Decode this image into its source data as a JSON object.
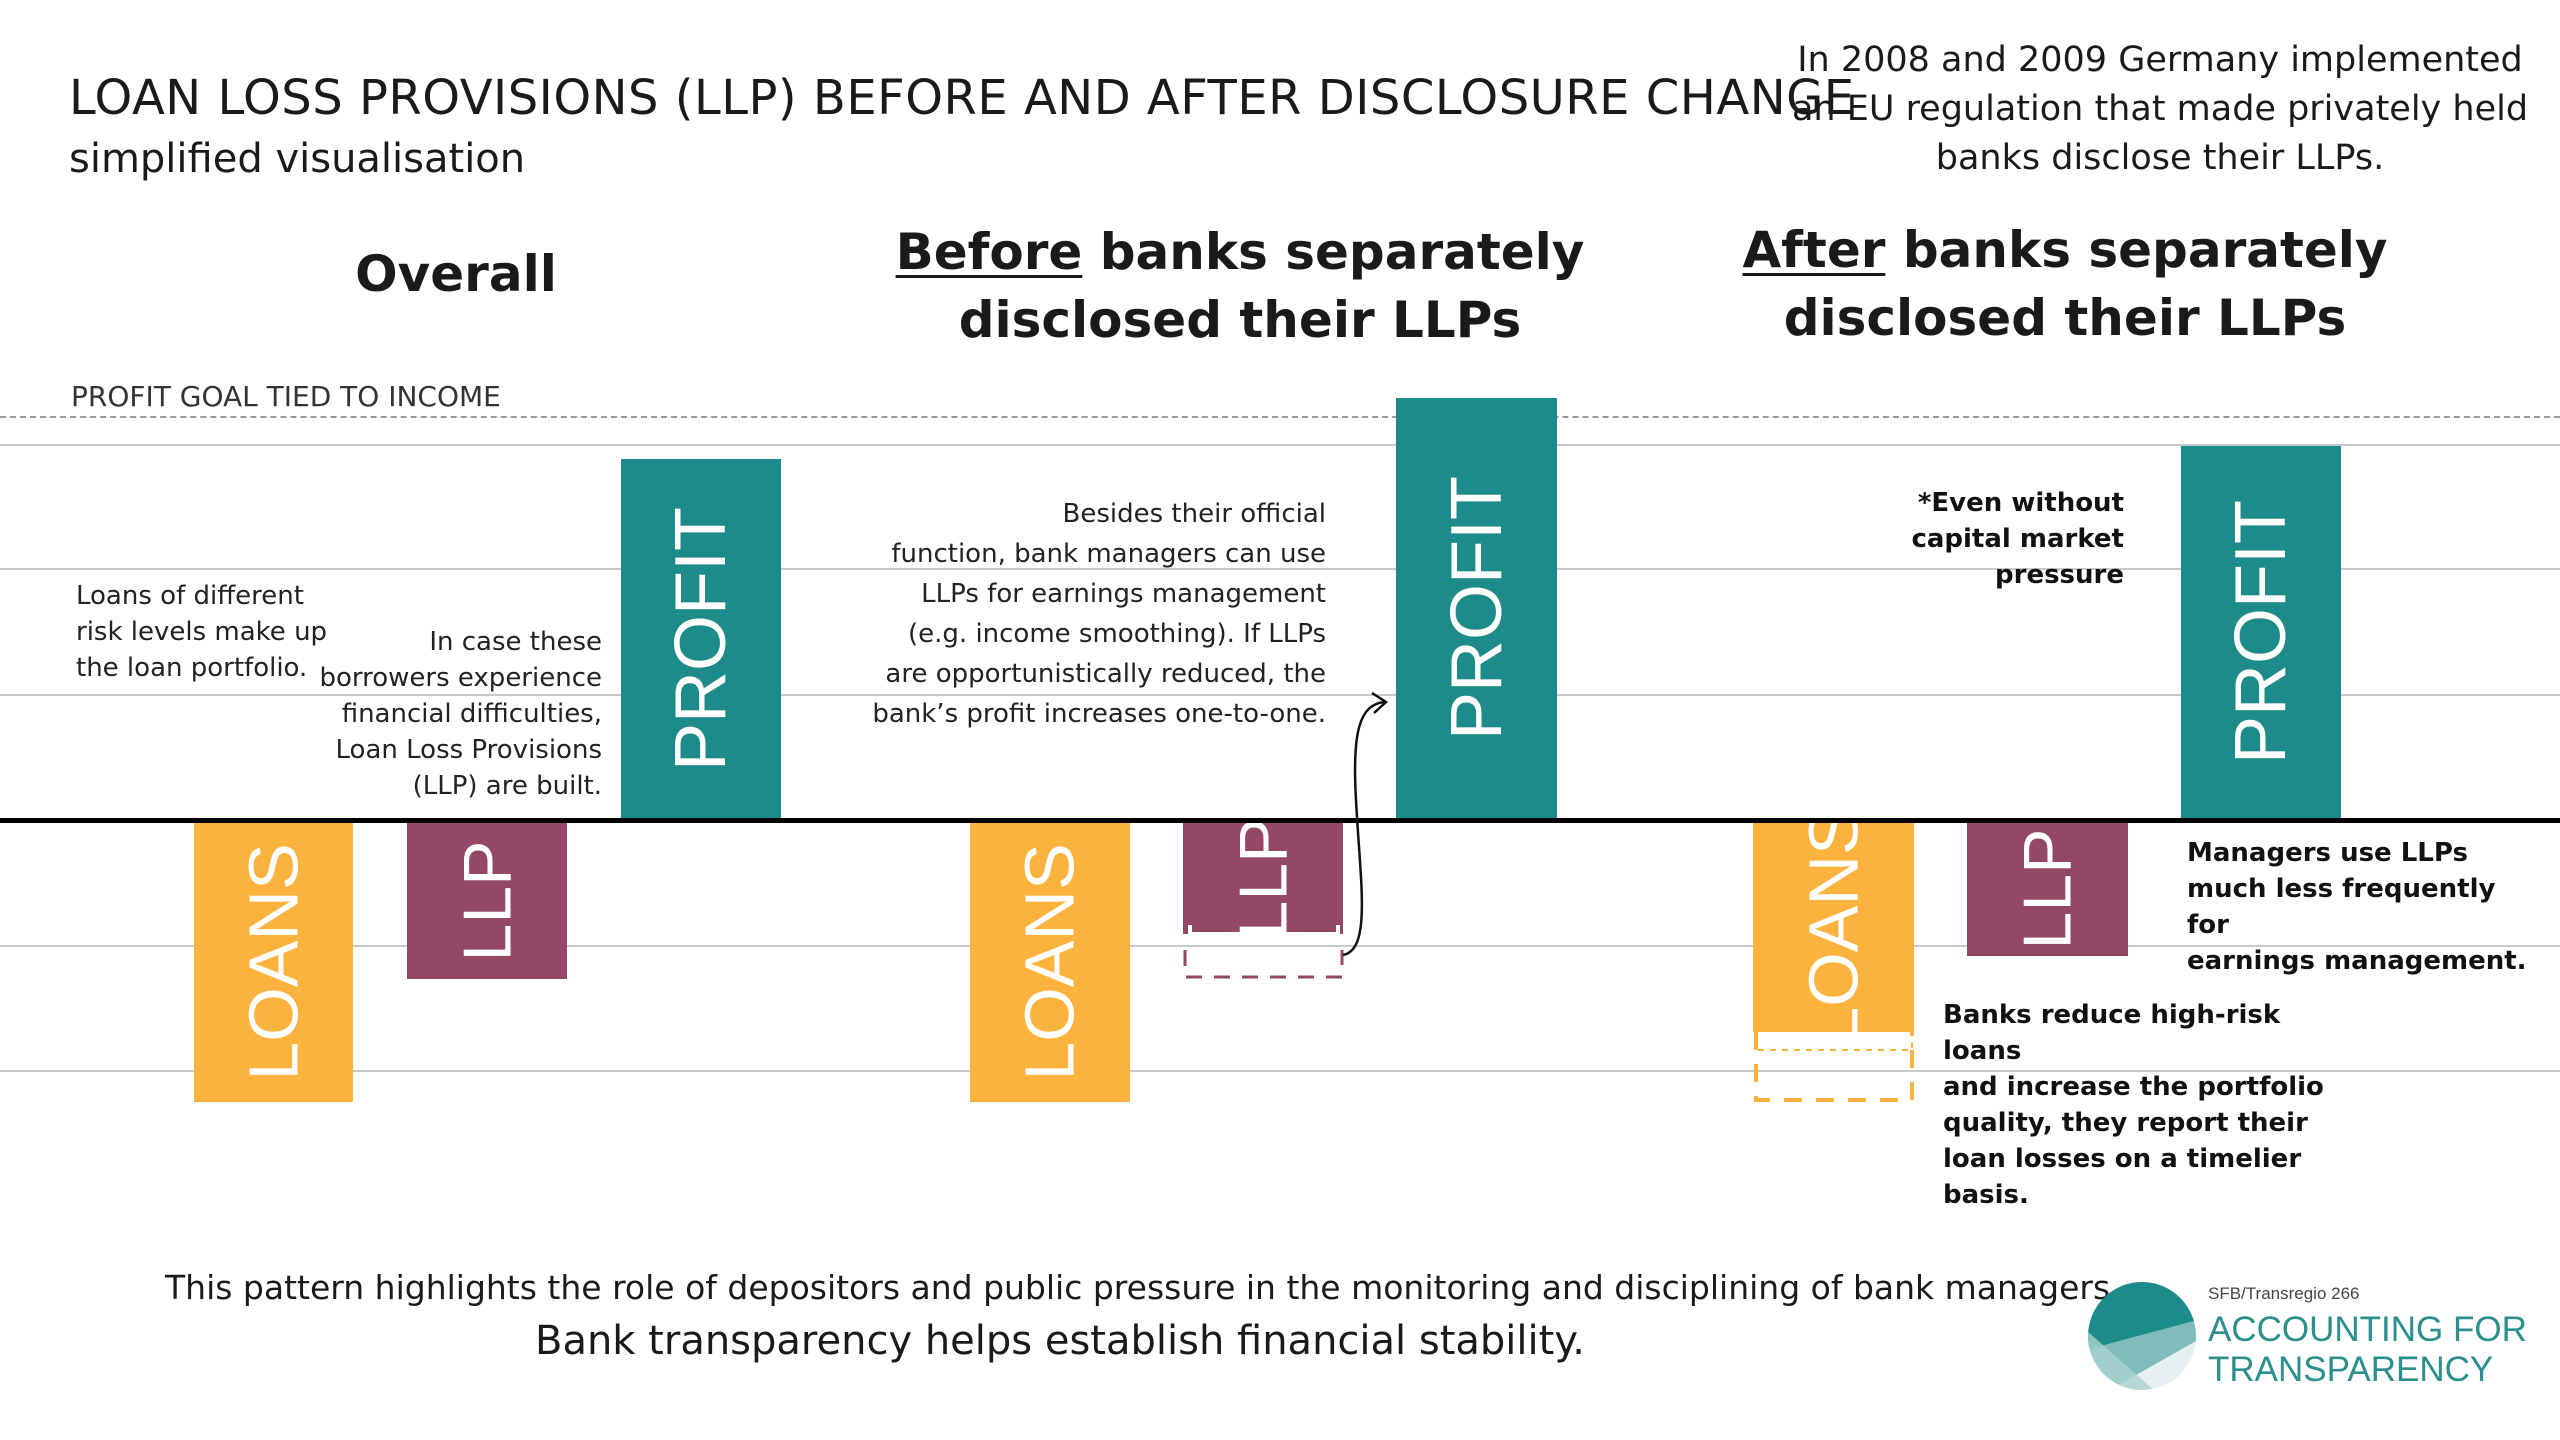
{
  "header": {
    "title": "LOAN LOSS PROVISIONS (LLP) BEFORE AND AFTER DISCLOSURE CHANGE",
    "subtitle": "simplified visualisation",
    "context": "In 2008 and 2009 Germany implemented an EU regulation that made privately held banks disclose their LLPs."
  },
  "panels": {
    "overall": {
      "title": "Overall"
    },
    "before": {
      "title_em": "Before",
      "title_rest": " banks separately",
      "title_line2": "disclosed their LLPs"
    },
    "after": {
      "title_em": "After",
      "title_rest": " banks separately",
      "title_line2": "disclosed their LLPs"
    }
  },
  "goal_label": "PROFIT GOAL TIED TO INCOME",
  "bars": {
    "loans": "LOANS",
    "llp": "LLP",
    "profit": "PROFIT"
  },
  "bar_colors": {
    "loans": "#fbb33d",
    "llp": "#944865",
    "profit": "#1d8b89"
  },
  "notes": {
    "loans_portfolio": [
      "Loans of different",
      "risk levels make up",
      "the loan portfolio."
    ],
    "llp_built": [
      "In case these",
      "borrowers experience",
      "financial difficulties,",
      "Loan Loss Provisions",
      "(LLP) are built."
    ],
    "earnings_mgmt": [
      "Besides their official",
      "function, bank managers can use",
      "LLPs for earnings management",
      "(e.g. income smoothing). If LLPs",
      "are opportunistically reduced, the",
      "bank’s profit increases one-to-one."
    ],
    "even_without": [
      "*Even without",
      "capital market pressure"
    ],
    "managers_use": [
      "Managers use LLPs",
      "much less frequently for",
      "earnings management."
    ],
    "banks_reduce": [
      "Banks reduce high-risk loans",
      "and increase the portfolio",
      "quality, they report their",
      "loan losses on a timelier",
      "basis."
    ]
  },
  "footer": {
    "line1": "This pattern highlights the role of depositors and public pressure in the monitoring and disciplining of bank managers.",
    "line2": "Bank transparency helps establish financial stability."
  },
  "logo": {
    "small": "SFB/Transregio 266",
    "line1": "ACCOUNTING FOR",
    "line2": "TRANSPARENCY"
  }
}
